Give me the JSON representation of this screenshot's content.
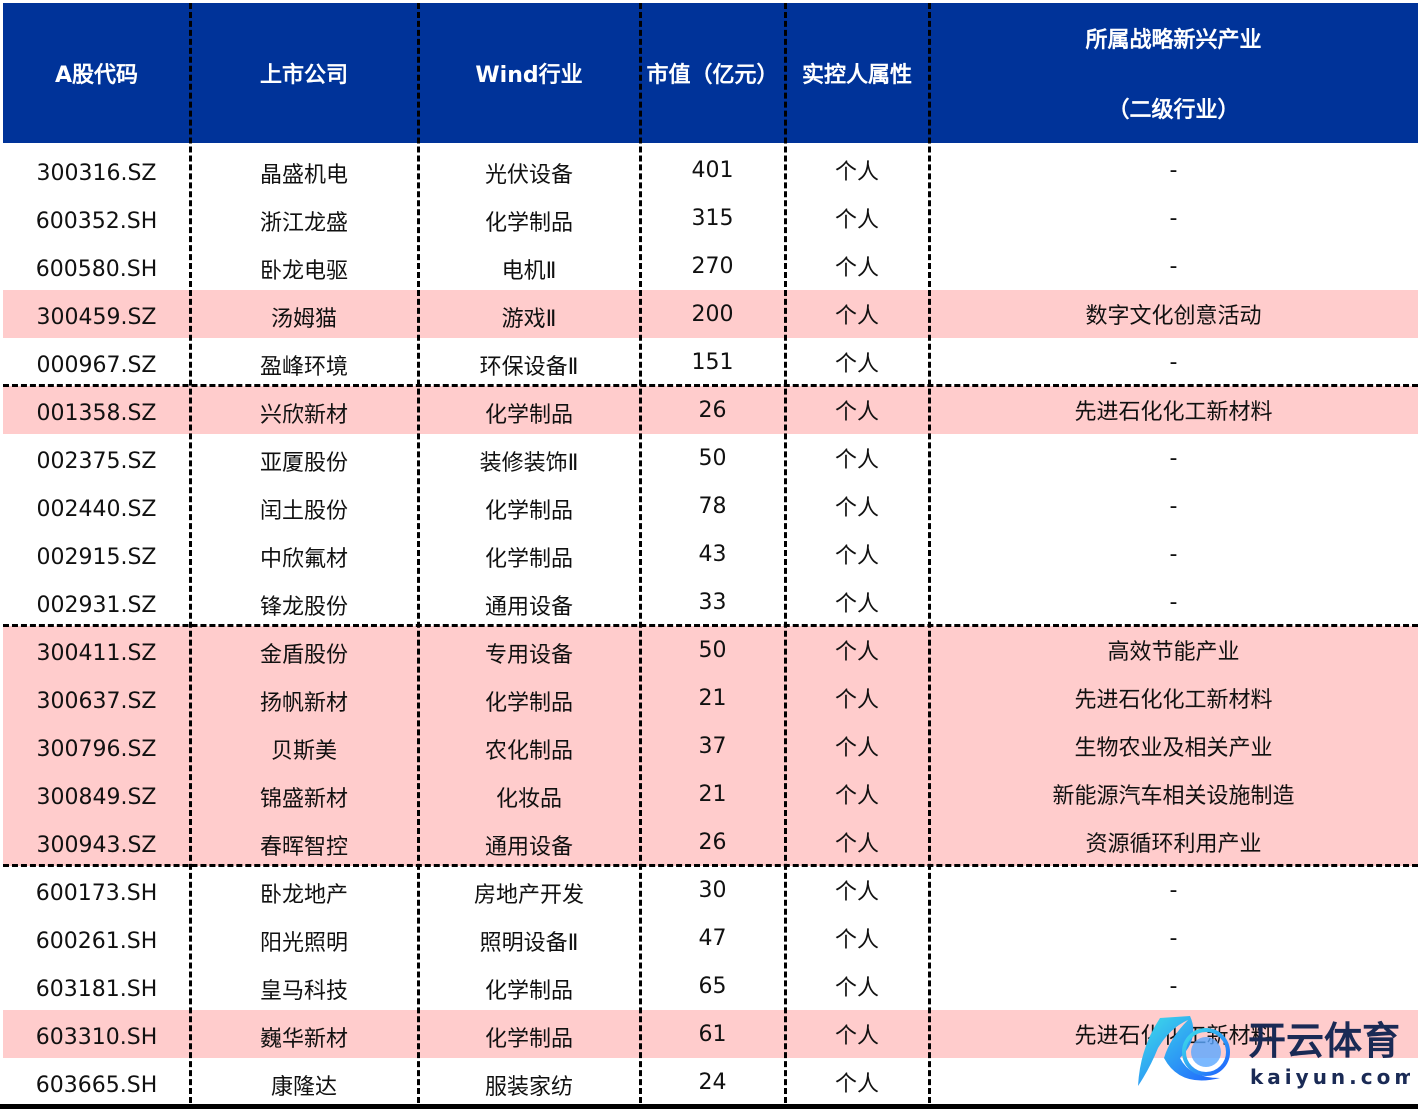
{
  "colors": {
    "header_bg": "#003399",
    "highlight": "#ffcccc"
  },
  "headers": [
    "A股代码",
    "上市公司",
    "Wind行业",
    "市值（亿元）",
    "实控人属性"
  ],
  "header_last": {
    "line1": "所属战略新兴产业",
    "line2": "（二级行业）"
  },
  "rows": [
    {
      "code": "300316.SZ",
      "company": "晶盛机电",
      "industry": "光伏设备",
      "cap": "401",
      "owner": "个人",
      "strategic": "-",
      "highlight": false
    },
    {
      "code": "600352.SH",
      "company": "浙江龙盛",
      "industry": "化学制品",
      "cap": "315",
      "owner": "个人",
      "strategic": "-",
      "highlight": false
    },
    {
      "code": "600580.SH",
      "company": "卧龙电驱",
      "industry": "电机Ⅱ",
      "cap": "270",
      "owner": "个人",
      "strategic": "-",
      "highlight": false
    },
    {
      "code": "300459.SZ",
      "company": "汤姆猫",
      "industry": "游戏Ⅱ",
      "cap": "200",
      "owner": "个人",
      "strategic": "数字文化创意活动",
      "highlight": true
    },
    {
      "code": "000967.SZ",
      "company": "盈峰环境",
      "industry": "环保设备Ⅱ",
      "cap": "151",
      "owner": "个人",
      "strategic": "-",
      "highlight": false
    },
    {
      "code": "001358.SZ",
      "company": "兴欣新材",
      "industry": "化学制品",
      "cap": "26",
      "owner": "个人",
      "strategic": "先进石化化工新材料",
      "highlight": true
    },
    {
      "code": "002375.SZ",
      "company": "亚厦股份",
      "industry": "装修装饰Ⅱ",
      "cap": "50",
      "owner": "个人",
      "strategic": "-",
      "highlight": false
    },
    {
      "code": "002440.SZ",
      "company": "闰土股份",
      "industry": "化学制品",
      "cap": "78",
      "owner": "个人",
      "strategic": "-",
      "highlight": false
    },
    {
      "code": "002915.SZ",
      "company": "中欣氟材",
      "industry": "化学制品",
      "cap": "43",
      "owner": "个人",
      "strategic": "-",
      "highlight": false
    },
    {
      "code": "002931.SZ",
      "company": "锋龙股份",
      "industry": "通用设备",
      "cap": "33",
      "owner": "个人",
      "strategic": "-",
      "highlight": false
    },
    {
      "code": "300411.SZ",
      "company": "金盾股份",
      "industry": "专用设备",
      "cap": "50",
      "owner": "个人",
      "strategic": "高效节能产业",
      "highlight": true
    },
    {
      "code": "300637.SZ",
      "company": "扬帆新材",
      "industry": "化学制品",
      "cap": "21",
      "owner": "个人",
      "strategic": "先进石化化工新材料",
      "highlight": true
    },
    {
      "code": "300796.SZ",
      "company": "贝斯美",
      "industry": "农化制品",
      "cap": "37",
      "owner": "个人",
      "strategic": "生物农业及相关产业",
      "highlight": true
    },
    {
      "code": "300849.SZ",
      "company": "锦盛新材",
      "industry": "化妆品",
      "cap": "21",
      "owner": "个人",
      "strategic": "新能源汽车相关设施制造",
      "highlight": true
    },
    {
      "code": "300943.SZ",
      "company": "春晖智控",
      "industry": "通用设备",
      "cap": "26",
      "owner": "个人",
      "strategic": "资源循环利用产业",
      "highlight": true
    },
    {
      "code": "600173.SH",
      "company": "卧龙地产",
      "industry": "房地产开发",
      "cap": "30",
      "owner": "个人",
      "strategic": "-",
      "highlight": false
    },
    {
      "code": "600261.SH",
      "company": "阳光照明",
      "industry": "照明设备Ⅱ",
      "cap": "47",
      "owner": "个人",
      "strategic": "-",
      "highlight": false
    },
    {
      "code": "603181.SH",
      "company": "皇马科技",
      "industry": "化学制品",
      "cap": "65",
      "owner": "个人",
      "strategic": "-",
      "highlight": false
    },
    {
      "code": "603310.SH",
      "company": "巍华新材",
      "industry": "化学制品",
      "cap": "61",
      "owner": "个人",
      "strategic": "先进石化化工新材料",
      "highlight": true
    },
    {
      "code": "603665.SH",
      "company": "康隆达",
      "industry": "服装家纺",
      "cap": "24",
      "owner": "个人",
      "strategic": "",
      "highlight": false
    }
  ],
  "watermark": {
    "text": "开云体育",
    "url_text": "kaiyun.com"
  }
}
